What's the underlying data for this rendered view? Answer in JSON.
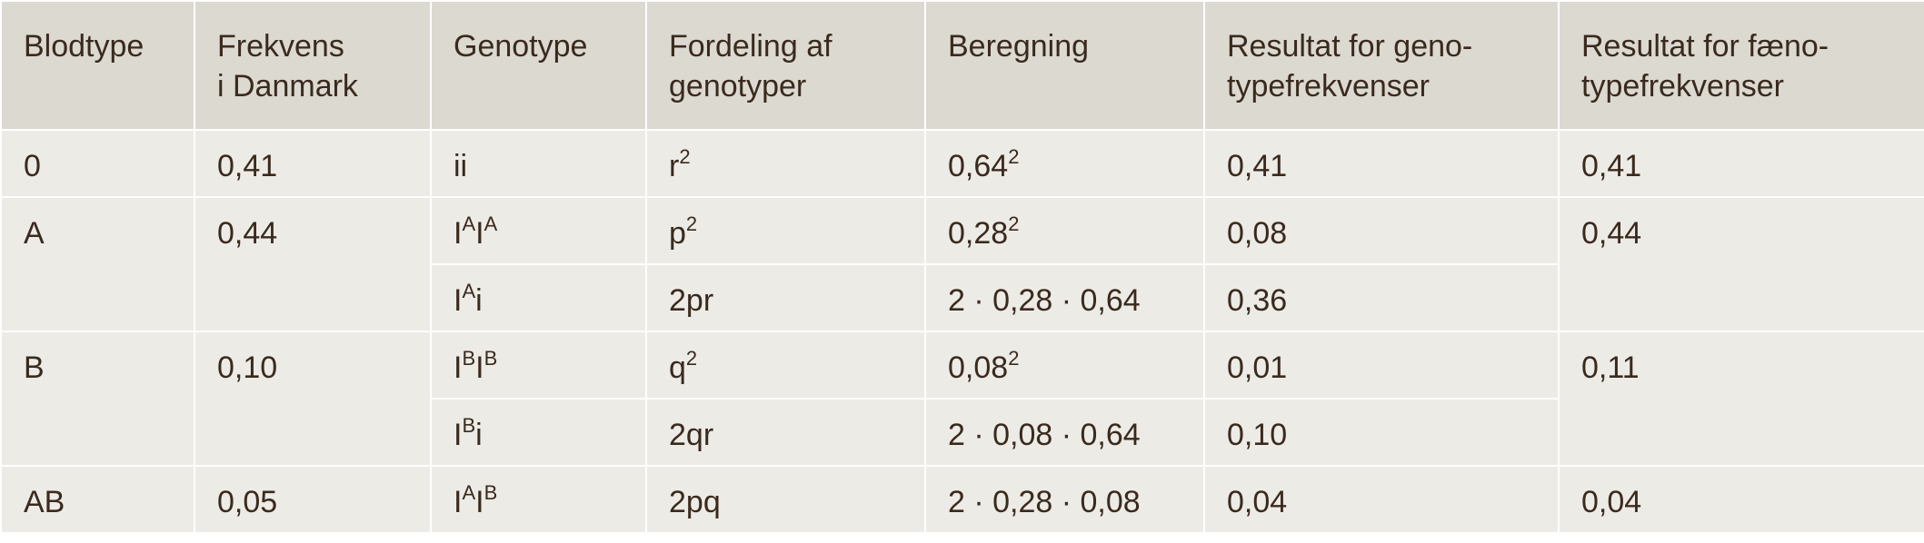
{
  "headers": [
    [
      "Blodtype"
    ],
    [
      "Frekvens",
      "i Danmark"
    ],
    [
      "Genotype"
    ],
    [
      "Fordeling af",
      "genotyper"
    ],
    [
      "Beregning"
    ],
    [
      "Resultat for geno-",
      "typefrekvenser"
    ],
    [
      "Resultat for fæno-",
      "typefrekvenser"
    ]
  ],
  "groups": [
    {
      "blodtype": "0",
      "frekvens": "0,41",
      "faenotype": "0,41",
      "rows": [
        {
          "g_base": "ii",
          "g_sup1": "",
          "g_mid": "",
          "g_sup2": "",
          "g_tail": "",
          "f_base": "r",
          "f_sup": "2",
          "b_base": "0,64",
          "b_sup": "2",
          "resultat": "0,41"
        }
      ]
    },
    {
      "blodtype": "A",
      "frekvens": "0,44",
      "faenotype": "0,44",
      "rows": [
        {
          "g_base": "I",
          "g_sup1": "A",
          "g_mid": "I",
          "g_sup2": "A",
          "g_tail": "",
          "f_base": "p",
          "f_sup": "2",
          "b_base": "0,28",
          "b_sup": "2",
          "resultat": "0,08"
        },
        {
          "g_base": "I",
          "g_sup1": "A",
          "g_mid": "",
          "g_sup2": "",
          "g_tail": "i",
          "f_base": "2pr",
          "f_sup": "",
          "b_base": "2 · 0,28 · 0,64",
          "b_sup": "",
          "resultat": "0,36"
        }
      ]
    },
    {
      "blodtype": "B",
      "frekvens": "0,10",
      "faenotype": "0,11",
      "rows": [
        {
          "g_base": "I",
          "g_sup1": "B",
          "g_mid": "I",
          "g_sup2": "B",
          "g_tail": "",
          "f_base": "q",
          "f_sup": "2",
          "b_base": "0,08",
          "b_sup": "2",
          "resultat": "0,01"
        },
        {
          "g_base": "I",
          "g_sup1": "B",
          "g_mid": "",
          "g_sup2": "",
          "g_tail": "i",
          "f_base": "2qr",
          "f_sup": "",
          "b_base": "2 · 0,08 · 0,64",
          "b_sup": "",
          "resultat": "0,10"
        }
      ]
    },
    {
      "blodtype": "AB",
      "frekvens": "0,05",
      "faenotype": "0,04",
      "rows": [
        {
          "g_base": "I",
          "g_sup1": "A",
          "g_mid": "I",
          "g_sup2": "B",
          "g_tail": "",
          "f_base": "2pq",
          "f_sup": "",
          "b_base": "2 · 0,28 · 0,08",
          "b_sup": "",
          "resultat": "0,04"
        }
      ]
    }
  ]
}
